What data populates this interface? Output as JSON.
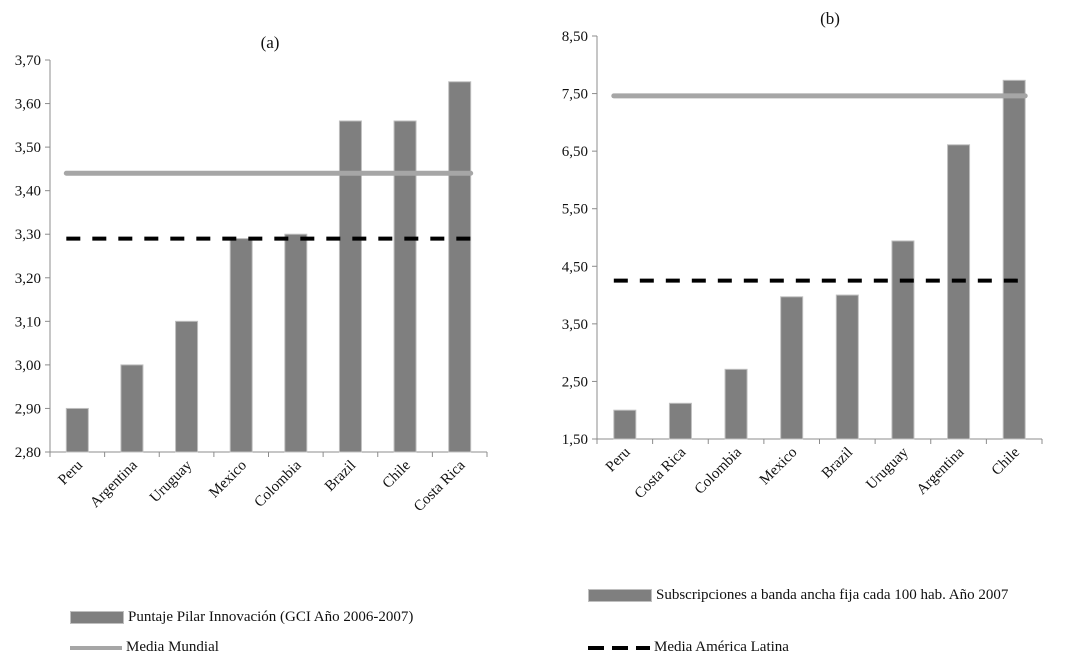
{
  "chart_data": [
    {
      "type": "bar",
      "title": "(a)",
      "categories": [
        "Peru",
        "Argentina",
        "Uruguay",
        "Mexico",
        "Colombia",
        "Brazil",
        "Chile",
        "Costa Rica"
      ],
      "series": [
        {
          "name": "Puntaje Pilar Innovación (GCI Año 2006-2007)",
          "values": [
            2.9,
            3.0,
            3.1,
            3.29,
            3.3,
            3.56,
            3.56,
            3.65
          ],
          "color": "#7f7f7f"
        }
      ],
      "reference_lines": [
        {
          "name": "Media Mundial",
          "value": 3.44,
          "color": "#a6a6a6",
          "style": "solid"
        },
        {
          "name": "Media América Latina",
          "value": 3.29,
          "color": "#000000",
          "style": "dashed"
        }
      ],
      "ylim": [
        2.8,
        3.7
      ],
      "yticks": [
        "2,80",
        "2,90",
        "3,00",
        "3,10",
        "3,20",
        "3,30",
        "3,40",
        "3,50",
        "3,60",
        "3,70"
      ],
      "xlabel": "",
      "ylabel": "",
      "grid": false,
      "legend": "bottom"
    },
    {
      "type": "bar",
      "title": "(b)",
      "categories": [
        "Peru",
        "Costa Rica",
        "Colombia",
        "Mexico",
        "Brazil",
        "Uruguay",
        "Argentina",
        "Chile"
      ],
      "series": [
        {
          "name": "Subscripciones a banda ancha fija cada 100 hab. Año 2007",
          "values": [
            2.0,
            2.12,
            2.71,
            3.97,
            4.0,
            4.94,
            6.61,
            7.73
          ],
          "color": "#7f7f7f"
        }
      ],
      "reference_lines": [
        {
          "name": "Media Mundial",
          "value": 7.46,
          "color": "#a6a6a6",
          "style": "solid"
        },
        {
          "name": "Media América Latina",
          "value": 4.25,
          "color": "#000000",
          "style": "dashed"
        }
      ],
      "ylim": [
        1.5,
        8.5
      ],
      "yticks": [
        "1,50",
        "2,50",
        "3,50",
        "4,50",
        "5,50",
        "6,50",
        "7,50",
        "8,50"
      ],
      "xlabel": "",
      "ylabel": "",
      "grid": false,
      "legend": "bottom"
    }
  ],
  "legend": {
    "bar_a": "Puntaje Pilar Innovación (GCI Año 2006-2007)",
    "bar_b": "Subscripciones a banda ancha fija cada 100 hab. Año 2007",
    "media_mundial": "Media Mundial",
    "media_al": "Media América Latina"
  },
  "colors": {
    "bar": "#7f7f7f",
    "bar_edge": "#bfbfbf",
    "media_mundial": "#a6a6a6",
    "media_al": "#000000",
    "axis": "#8c8c8c"
  }
}
